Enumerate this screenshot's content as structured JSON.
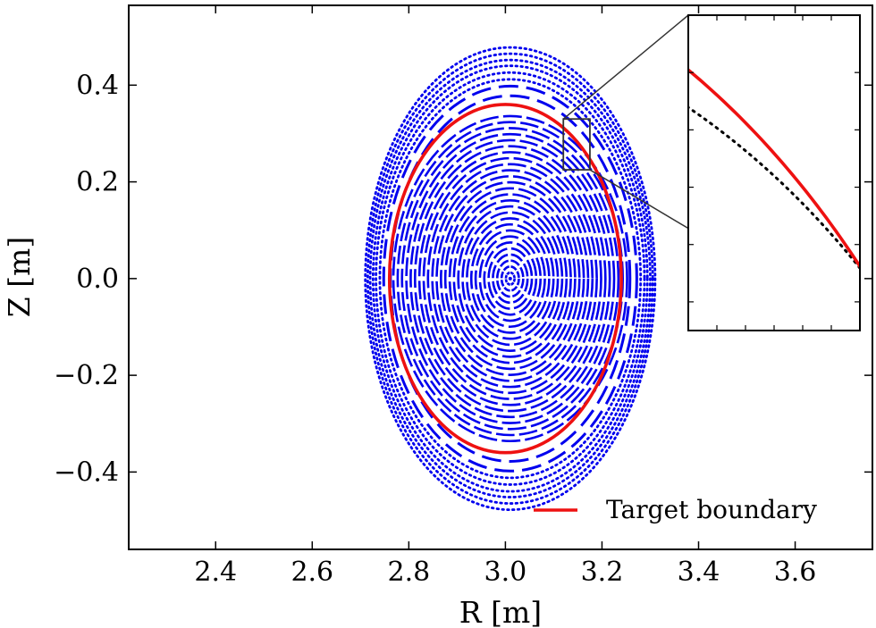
{
  "chart_data": {
    "type": "scatter",
    "xlabel": "R [m]",
    "ylabel": "Z [m]",
    "xlim": [
      2.22,
      3.76
    ],
    "ylim": [
      -0.56,
      0.565
    ],
    "xticks": [
      2.4,
      2.6,
      2.8,
      3.0,
      3.2,
      3.4,
      3.6
    ],
    "xtick_labels": [
      "2.4",
      "2.6",
      "2.8",
      "3.0",
      "3.2",
      "3.4",
      "3.6"
    ],
    "yticks": [
      0.4,
      0.2,
      0.0,
      -0.2,
      -0.4
    ],
    "ytick_labels": [
      "0.4",
      "0.2",
      "0.0",
      "−0.2",
      "−0.4"
    ],
    "grid": false,
    "legend_position": "bottom-right",
    "series": [
      {
        "kind": "poincare_surfaces",
        "color": "#0000ee",
        "marker": "dot",
        "center": [
          3.01,
          0.0
        ],
        "outer_semi_axes": [
          0.3,
          0.478
        ],
        "inner_surfaces": 27,
        "inner_max_semi_axes": [
          0.242,
          0.336
        ],
        "outer_surfaces": [
          {
            "a": 0.248,
            "b": 0.378,
            "style": "dashed"
          },
          {
            "a": 0.262,
            "b": 0.398,
            "style": "dashed"
          },
          {
            "a": 0.27,
            "b": 0.412,
            "style": "dotted"
          },
          {
            "a": 0.278,
            "b": 0.426,
            "style": "dotted"
          },
          {
            "a": 0.284,
            "b": 0.44,
            "style": "dotted"
          },
          {
            "a": 0.29,
            "b": 0.452,
            "style": "dotted"
          },
          {
            "a": 0.295,
            "b": 0.465,
            "style": "dotted"
          },
          {
            "a": 0.3,
            "b": 0.478,
            "style": "dotted"
          }
        ]
      },
      {
        "name": "Target boundary",
        "kind": "ellipse",
        "color": "#ee1111",
        "center": [
          3.0,
          0.0
        ],
        "semi_axes": [
          0.24,
          0.36
        ]
      }
    ],
    "inset": {
      "zoom_region_x": [
        3.12,
        3.175
      ],
      "zoom_region_y": [
        0.225,
        0.33
      ]
    }
  }
}
